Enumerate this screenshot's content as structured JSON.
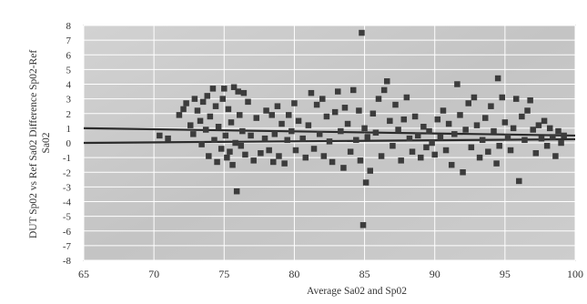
{
  "chart_data": {
    "type": "scatter",
    "title": "",
    "xlabel": "Average Sa02 and Sp02",
    "ylabel": "DUT Sp02 vs Ref Sa02 Difference Sp02-Ref Sa02",
    "ylabel_lines": [
      "DUT Sp02 vs Ref Sa02 Difference Sp02-Ref",
      "Sa02"
    ],
    "xlim": [
      65,
      100
    ],
    "ylim": [
      -8,
      8
    ],
    "x_ticks": [
      "65",
      "70",
      "75",
      "80",
      "85",
      "90",
      "95",
      "100"
    ],
    "y_ticks": [
      "8",
      "7",
      "6",
      "5",
      "4",
      "3",
      "2",
      "1",
      "0",
      "-1",
      "-2",
      "-3",
      "-4",
      "-5",
      "-6",
      "-7",
      "-8"
    ],
    "grid": true,
    "legend": "none",
    "colors": {
      "points": "#3c3c3c",
      "plot_bg": "#c9c9c9",
      "grid": "#ffffff",
      "lines": "#2b2b2b"
    },
    "reference_lines": [
      {
        "kind": "upper",
        "x": [
          65,
          100
        ],
        "y": [
          1.0,
          0.5
        ]
      },
      {
        "kind": "lower",
        "x": [
          65,
          100
        ],
        "y": [
          0.0,
          0.25
        ]
      }
    ],
    "points": [
      [
        70.4,
        0.5
      ],
      [
        71.0,
        0.3
      ],
      [
        71.8,
        1.9
      ],
      [
        72.1,
        2.3
      ],
      [
        72.3,
        2.7
      ],
      [
        72.6,
        1.2
      ],
      [
        72.8,
        0.6
      ],
      [
        72.9,
        3.0
      ],
      [
        73.1,
        2.2
      ],
      [
        73.3,
        1.5
      ],
      [
        73.4,
        -0.1
      ],
      [
        73.5,
        2.8
      ],
      [
        73.7,
        0.9
      ],
      [
        73.8,
        3.2
      ],
      [
        73.9,
        -0.9
      ],
      [
        74.0,
        1.8
      ],
      [
        74.2,
        3.7
      ],
      [
        74.3,
        0.2
      ],
      [
        74.4,
        2.5
      ],
      [
        74.5,
        -1.3
      ],
      [
        74.6,
        1.1
      ],
      [
        74.8,
        -0.4
      ],
      [
        74.9,
        3.0
      ],
      [
        75.0,
        3.7
      ],
      [
        75.1,
        0.5
      ],
      [
        75.2,
        -1.0
      ],
      [
        75.3,
        2.3
      ],
      [
        75.4,
        -0.6
      ],
      [
        75.5,
        1.4
      ],
      [
        75.6,
        -1.5
      ],
      [
        75.7,
        3.8
      ],
      [
        75.8,
        0.0
      ],
      [
        75.9,
        -3.3
      ],
      [
        76.0,
        3.5
      ],
      [
        76.1,
        1.9
      ],
      [
        76.2,
        -0.2
      ],
      [
        76.3,
        0.8
      ],
      [
        76.4,
        3.4
      ],
      [
        76.5,
        -0.8
      ],
      [
        76.7,
        2.8
      ],
      [
        76.9,
        0.5
      ],
      [
        77.1,
        -1.2
      ],
      [
        77.3,
        1.7
      ],
      [
        77.6,
        -0.7
      ],
      [
        77.9,
        0.3
      ],
      [
        78.0,
        2.2
      ],
      [
        78.2,
        -0.5
      ],
      [
        78.4,
        1.9
      ],
      [
        78.5,
        -1.3
      ],
      [
        78.6,
        0.6
      ],
      [
        78.8,
        2.5
      ],
      [
        78.9,
        -0.9
      ],
      [
        79.1,
        1.3
      ],
      [
        79.3,
        -1.4
      ],
      [
        79.5,
        0.2
      ],
      [
        79.6,
        1.9
      ],
      [
        79.8,
        0.8
      ],
      [
        80.0,
        2.7
      ],
      [
        80.1,
        -0.5
      ],
      [
        80.3,
        1.5
      ],
      [
        80.6,
        0.3
      ],
      [
        80.8,
        -1.0
      ],
      [
        81.0,
        1.2
      ],
      [
        81.2,
        3.4
      ],
      [
        81.4,
        -0.4
      ],
      [
        81.6,
        2.6
      ],
      [
        81.8,
        0.6
      ],
      [
        82.0,
        3.0
      ],
      [
        82.1,
        -0.9
      ],
      [
        82.3,
        1.8
      ],
      [
        82.5,
        0.1
      ],
      [
        82.7,
        -1.3
      ],
      [
        82.9,
        2.1
      ],
      [
        83.1,
        3.5
      ],
      [
        83.3,
        0.8
      ],
      [
        83.5,
        -1.7
      ],
      [
        83.6,
        2.4
      ],
      [
        83.8,
        1.3
      ],
      [
        84.0,
        -0.6
      ],
      [
        84.2,
        3.6
      ],
      [
        84.4,
        0.2
      ],
      [
        84.6,
        2.2
      ],
      [
        84.7,
        -1.2
      ],
      [
        84.8,
        7.5
      ],
      [
        84.9,
        -5.6
      ],
      [
        85.0,
        1.0
      ],
      [
        85.1,
        -2.7
      ],
      [
        85.2,
        0.4
      ],
      [
        85.4,
        -1.9
      ],
      [
        85.6,
        2.0
      ],
      [
        85.8,
        0.7
      ],
      [
        86.0,
        3.0
      ],
      [
        86.2,
        -0.9
      ],
      [
        86.4,
        3.6
      ],
      [
        86.6,
        4.2
      ],
      [
        86.8,
        1.5
      ],
      [
        87.0,
        -0.2
      ],
      [
        87.2,
        2.6
      ],
      [
        87.4,
        0.9
      ],
      [
        87.6,
        -1.2
      ],
      [
        87.8,
        1.6
      ],
      [
        88.0,
        3.1
      ],
      [
        88.2,
        0.3
      ],
      [
        88.4,
        -0.6
      ],
      [
        88.6,
        1.8
      ],
      [
        88.8,
        0.5
      ],
      [
        89.0,
        -1.0
      ],
      [
        89.2,
        1.1
      ],
      [
        89.4,
        -0.3
      ],
      [
        89.6,
        0.8
      ],
      [
        89.8,
        0.0
      ],
      [
        90.0,
        -0.8
      ],
      [
        90.2,
        1.6
      ],
      [
        90.4,
        0.4
      ],
      [
        90.6,
        2.2
      ],
      [
        90.8,
        -0.5
      ],
      [
        91.0,
        1.3
      ],
      [
        91.2,
        -1.5
      ],
      [
        91.4,
        0.6
      ],
      [
        91.6,
        4.0
      ],
      [
        91.8,
        1.9
      ],
      [
        92.0,
        -2.0
      ],
      [
        92.2,
        0.9
      ],
      [
        92.4,
        2.7
      ],
      [
        92.6,
        -0.3
      ],
      [
        92.8,
        3.1
      ],
      [
        93.0,
        1.2
      ],
      [
        93.2,
        -1.0
      ],
      [
        93.4,
        0.2
      ],
      [
        93.6,
        1.7
      ],
      [
        93.8,
        -0.6
      ],
      [
        94.0,
        2.5
      ],
      [
        94.2,
        0.8
      ],
      [
        94.4,
        -1.4
      ],
      [
        94.5,
        4.4
      ],
      [
        94.6,
        -0.2
      ],
      [
        94.8,
        3.1
      ],
      [
        95.0,
        1.4
      ],
      [
        95.2,
        0.4
      ],
      [
        95.4,
        -0.5
      ],
      [
        95.6,
        1.0
      ],
      [
        95.8,
        3.0
      ],
      [
        96.0,
        -2.6
      ],
      [
        96.2,
        1.8
      ],
      [
        96.4,
        0.2
      ],
      [
        96.6,
        2.2
      ],
      [
        96.8,
        2.9
      ],
      [
        97.0,
        0.9
      ],
      [
        97.2,
        -0.7
      ],
      [
        97.4,
        1.2
      ],
      [
        97.6,
        0.3
      ],
      [
        97.8,
        1.5
      ],
      [
        98.0,
        -0.2
      ],
      [
        98.2,
        1.0
      ],
      [
        98.4,
        0.4
      ],
      [
        98.6,
        -0.9
      ],
      [
        98.8,
        0.8
      ],
      [
        99.0,
        0.0
      ],
      [
        99.2,
        0.5
      ]
    ]
  }
}
